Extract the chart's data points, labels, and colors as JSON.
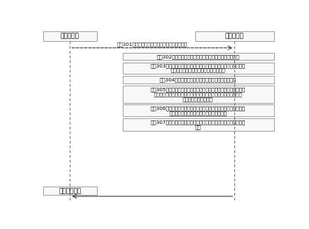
{
  "bg_color": "#ffffff",
  "box_left_label": "视频客户端",
  "box_right_label": "计算机设备",
  "output_label": "曝光目标视频",
  "step301": "步骤301：确定视频客户端所要播放的待植入视频",
  "step302": "步骤302：对待植入视频进行切分处理，得到多个视频分片",
  "step303_l1": "步骤303：分别对所述多个视频分片进行实体识别，确定各所述视频",
  "step303_l2": "分片的图像帧中所述实体对应的实体区域",
  "step304": "步骤304：获取对应所述实体区域的待植入多媒体信息",
  "step305_l1": "步骤305：以所述图像帧的实体区域为背景，以对应的所述待植入多",
  "step305_l2": "媒体信息为前景，在所述图像帧的实体区域植入所述待植入多媒体",
  "step305_l3": "信息，得到目标图像帧",
  "step306_l1": "步骤306：调整所述目标图像帧中所述前景的图像参数，使得所述前",
  "step306_l2": "景的图像参数和所述背景的图像参数相匹配",
  "step307_l1": "步骤307：基于调整后的目标图像帧进行视频合成，得到并曝光目标",
  "step307_l2": "视频",
  "box_edge_color": "#999999",
  "box_fill_color": "#f8f8f8",
  "line_color": "#666666",
  "arrow_color": "#333333",
  "font_size": 5.2,
  "header_font_size": 6.5
}
